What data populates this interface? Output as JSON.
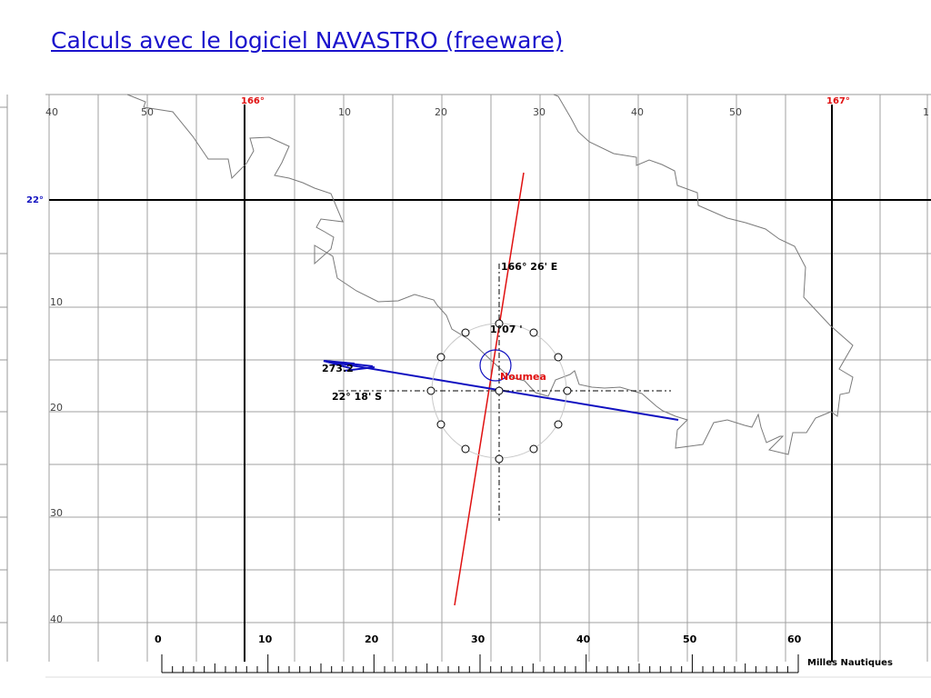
{
  "title": "Calculs avec le logiciel NAVASTRO (freeware)",
  "top_minute_labels": [
    "40",
    "50",
    "10",
    "20",
    "30",
    "40",
    "50",
    "1"
  ],
  "left_minute_labels": [
    "10",
    "20",
    "30",
    "40"
  ],
  "degree_labels": {
    "lon_west": "166°",
    "lon_east": "167°",
    "lat_top": "22°"
  },
  "annotations": {
    "longitude": "166° 26' E",
    "latitude": "22° 18' S",
    "angle": "1°07 '",
    "bearing": "273.2",
    "place": "Noumea"
  },
  "scale": {
    "labels": [
      "0",
      "10",
      "20",
      "30",
      "40",
      "50",
      "60"
    ],
    "units": "Milles Nautiques"
  },
  "colors": {
    "title": "#1a12cc",
    "red_line": "#e01010",
    "blue_line": "#1010c0",
    "coast": "#7a7a7a"
  }
}
